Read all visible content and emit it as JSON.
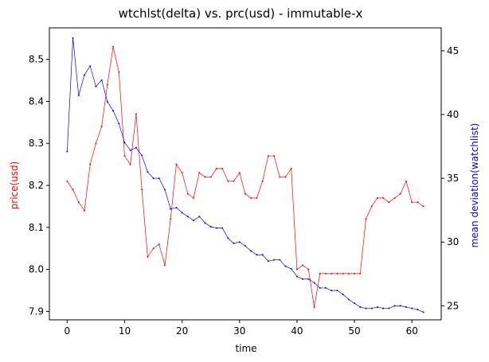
{
  "chart_data": {
    "type": "line",
    "title": "wtchlst(delta) vs. prc(usd) - immutable-x",
    "xlabel": "time",
    "ylabel_left": "price(usd)",
    "ylabel_right": "mean deviation(watchlist)",
    "xlim": [
      -3.1,
      65.1
    ],
    "ylim_left": [
      7.88,
      8.575
    ],
    "ylim_right": [
      23.9,
      46.8
    ],
    "x_ticks": [
      0,
      10,
      20,
      30,
      40,
      50,
      60
    ],
    "y_ticks_left": [
      7.9,
      8.0,
      8.1,
      8.2,
      8.3,
      8.4,
      8.5
    ],
    "y_ticks_right": [
      25,
      30,
      35,
      40,
      45
    ],
    "grid": false,
    "series": [
      {
        "axis": "left",
        "color": "#ff0000",
        "values": [
          8.21,
          8.19,
          8.16,
          8.14,
          8.25,
          8.3,
          8.34,
          8.44,
          8.53,
          8.47,
          8.27,
          8.25,
          8.37,
          8.19,
          8.03,
          8.05,
          8.06,
          8.01,
          8.12,
          8.25,
          8.23,
          8.18,
          8.17,
          8.23,
          8.22,
          8.22,
          8.24,
          8.24,
          8.21,
          8.21,
          8.23,
          8.18,
          8.17,
          8.17,
          8.21,
          8.27,
          8.27,
          8.22,
          8.22,
          8.24,
          8.0,
          8.01,
          8.0,
          7.91,
          7.99,
          7.99,
          7.99,
          7.99,
          7.99,
          7.99,
          7.99,
          7.99,
          8.12,
          8.15,
          8.17,
          8.17,
          8.16,
          8.17,
          8.18,
          8.21,
          8.16,
          8.16,
          8.15
        ]
      },
      {
        "axis": "right",
        "color": "#0000ff",
        "values": [
          37.1,
          46.0,
          41.5,
          43.1,
          43.8,
          42.2,
          42.7,
          41.0,
          40.3,
          39.3,
          37.8,
          37.2,
          37.4,
          36.8,
          35.5,
          35.0,
          35.0,
          34.1,
          32.6,
          32.7,
          32.3,
          32.0,
          31.7,
          32.0,
          31.5,
          31.2,
          31.1,
          31.1,
          30.3,
          29.9,
          30.0,
          29.7,
          29.3,
          29.0,
          29.0,
          28.5,
          28.6,
          28.6,
          28.1,
          27.9,
          27.3,
          27.1,
          27.1,
          26.8,
          26.4,
          26.4,
          26.2,
          26.2,
          25.9,
          25.5,
          25.2,
          24.9,
          24.8,
          24.8,
          24.9,
          24.8,
          24.8,
          25.0,
          25.0,
          24.9,
          24.8,
          24.7,
          24.5
        ]
      }
    ]
  }
}
